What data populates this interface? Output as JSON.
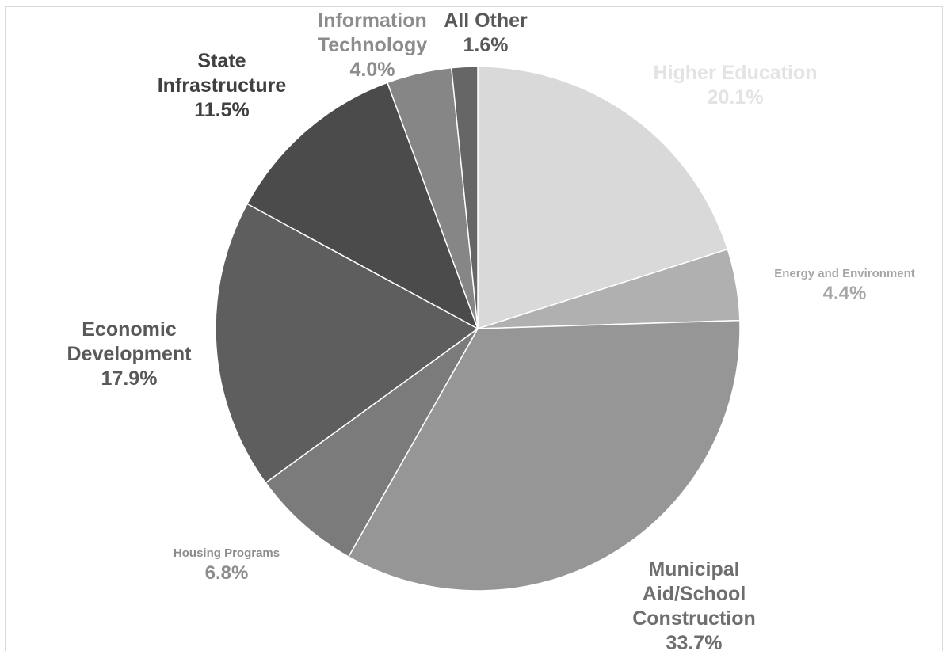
{
  "chart_data": {
    "type": "pie",
    "title": "",
    "slices": [
      {
        "label": "Higher Education",
        "label_lines": [
          "Higher Education"
        ],
        "value": 20.1,
        "value_label": "20.1%",
        "color": "#d9d9d9",
        "label_color": "#e3e3e3"
      },
      {
        "label": "Energy and Environment",
        "label_lines": [
          "Energy and Environment"
        ],
        "value": 4.4,
        "value_label": "4.4%",
        "color": "#b0b0b0",
        "label_color": "#a6a6a6"
      },
      {
        "label": "Municipal Aid/School Construction",
        "label_lines": [
          "Municipal",
          "Aid/School",
          "Construction"
        ],
        "value": 33.7,
        "value_label": "33.7%",
        "color": "#969696",
        "label_color": "#6e6e6e"
      },
      {
        "label": "Housing Programs",
        "label_lines": [
          "Housing Programs"
        ],
        "value": 6.8,
        "value_label": "6.8%",
        "color": "#7b7b7b",
        "label_color": "#8c8c8c"
      },
      {
        "label": "Economic Development",
        "label_lines": [
          "Economic",
          "Development"
        ],
        "value": 17.9,
        "value_label": "17.9%",
        "color": "#5e5e5e",
        "label_color": "#595959"
      },
      {
        "label": "State Infrastructure",
        "label_lines": [
          "State",
          "Infrastructure"
        ],
        "value": 11.5,
        "value_label": "11.5%",
        "color": "#4b4b4b",
        "label_color": "#404040"
      },
      {
        "label": "Information Technology",
        "label_lines": [
          "Information",
          "Technology"
        ],
        "value": 4.0,
        "value_label": "4.0%",
        "color": "#868686",
        "label_color": "#8c8c8c"
      },
      {
        "label": "All Other",
        "label_lines": [
          "All Other"
        ],
        "value": 1.6,
        "value_label": "1.6%",
        "color": "#666666",
        "label_color": "#595959"
      }
    ],
    "start_angle": "12 o'clock",
    "direction": "clockwise",
    "legend": "none"
  }
}
